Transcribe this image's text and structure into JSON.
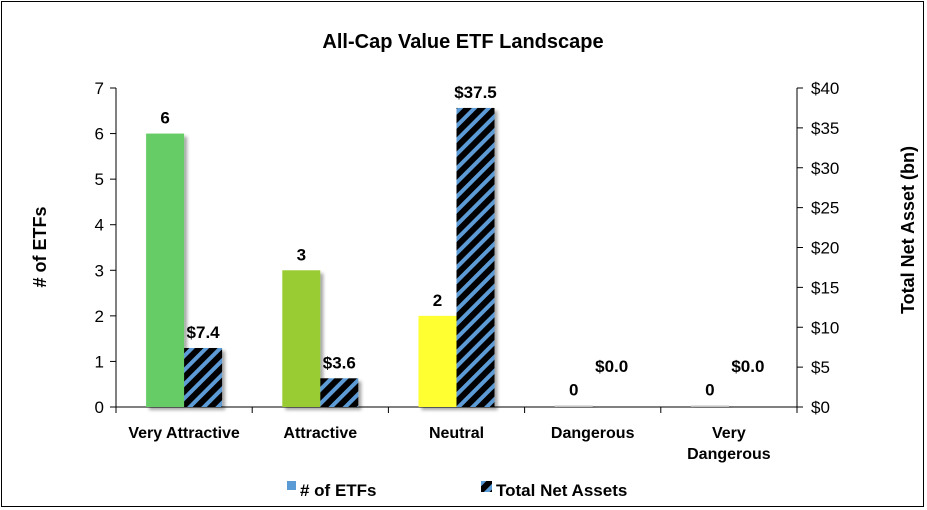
{
  "chart_data": {
    "type": "bar",
    "title": "All-Cap Value ETF Landscape",
    "categories": [
      [
        "Very Attractive"
      ],
      [
        "Attractive"
      ],
      [
        "Neutral"
      ],
      [
        "Dangerous"
      ],
      [
        "Very",
        "Dangerous"
      ]
    ],
    "category_colors": [
      "#66cc66",
      "#99cc33",
      "#ffff33",
      "#c0c0c0",
      "#c0c0c0"
    ],
    "series": [
      {
        "name": "# of ETFs",
        "axis": "left",
        "values": [
          6,
          3,
          2,
          0,
          0
        ],
        "labels": [
          "6",
          "3",
          "2",
          "0",
          "0"
        ]
      },
      {
        "name": "Total Net Assets",
        "axis": "right",
        "values": [
          7.4,
          3.6,
          37.5,
          0.0,
          0.0
        ],
        "labels": [
          "$7.4",
          "$3.6",
          "$37.5",
          "$0.0",
          "$0.0"
        ],
        "pattern_colors": [
          "#000000",
          "#5b9bd5"
        ]
      }
    ],
    "ylabel_left": "# of ETFs",
    "ylabel_right": "Total Net Asset (bn)",
    "ylim_left": [
      0,
      7
    ],
    "ylim_right": [
      0,
      40
    ],
    "yticks_left": [
      "0",
      "1",
      "2",
      "3",
      "4",
      "5",
      "6",
      "7"
    ],
    "yticks_right": [
      "$0",
      "$5",
      "$10",
      "$15",
      "$20",
      "$25",
      "$30",
      "$35",
      "$40"
    ],
    "legend": {
      "position": "bottom",
      "items": [
        "# of ETFs",
        "Total Net Assets"
      ],
      "swatch_color": "#5b9bd5"
    }
  }
}
